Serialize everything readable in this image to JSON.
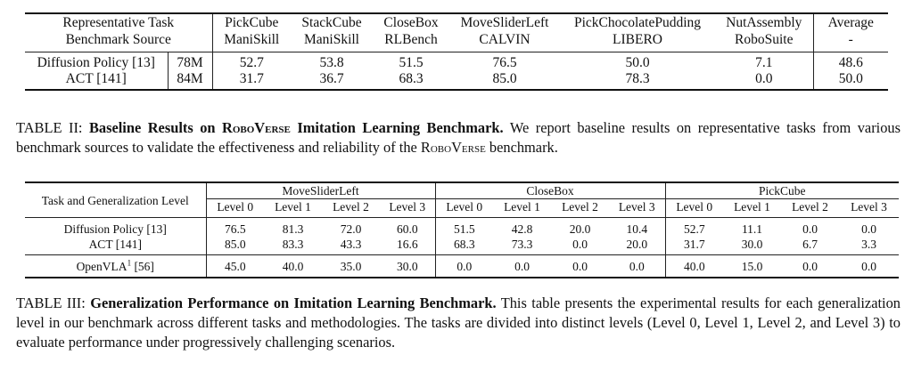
{
  "table2": {
    "header": {
      "label_line1": "Representative Task",
      "label_line2": "Benchmark Source",
      "columns": [
        {
          "task": "PickCube",
          "source": "ManiSkill"
        },
        {
          "task": "StackCube",
          "source": "ManiSkill"
        },
        {
          "task": "CloseBox",
          "source": "RLBench"
        },
        {
          "task": "MoveSliderLeft",
          "source": "CALVIN"
        },
        {
          "task": "PickChocolatePudding",
          "source": "LIBERO"
        },
        {
          "task": "NutAssembly",
          "source": "RoboSuite"
        }
      ],
      "average_label": "Average",
      "average_sub": "-"
    },
    "rows": [
      {
        "method": "Diffusion Policy [13]",
        "params": "78M",
        "values": [
          "52.7",
          "53.8",
          "51.5",
          "76.5",
          "50.0",
          "7.1"
        ],
        "average": "48.6"
      },
      {
        "method": "ACT [141]",
        "params": "84M",
        "values": [
          "31.7",
          "36.7",
          "68.3",
          "85.0",
          "78.3",
          "0.0"
        ],
        "average": "50.0"
      }
    ],
    "caption": {
      "label": "TABLE II:",
      "bold_a": "Baseline Results on ",
      "bold_sc": "RoboVerse",
      "bold_b": " Imitation Learning Benchmark.",
      "text_a": " We report baseline results on representative tasks from various benchmark sources to validate the effectiveness and reliability of the ",
      "text_sc": "RoboVerse",
      "text_b": " benchmark."
    }
  },
  "table3": {
    "header": {
      "label": "Task and Generalization Level",
      "groups": [
        "MoveSliderLeft",
        "CloseBox",
        "PickCube"
      ],
      "levels": [
        "Level 0",
        "Level 1",
        "Level 2",
        "Level 3"
      ]
    },
    "rows": [
      {
        "method": "Diffusion Policy [13]",
        "values": [
          "76.5",
          "81.3",
          "72.0",
          "60.0",
          "51.5",
          "42.8",
          "20.0",
          "10.4",
          "52.7",
          "11.1",
          "0.0",
          "0.0"
        ]
      },
      {
        "method": "ACT [141]",
        "values": [
          "85.0",
          "83.3",
          "43.3",
          "16.6",
          "68.3",
          "73.3",
          "0.0",
          "20.0",
          "31.7",
          "30.0",
          "6.7",
          "3.3"
        ]
      },
      {
        "method": "OpenVLA",
        "method_sup": "1",
        "method_ref": " [56]",
        "values": [
          "45.0",
          "40.0",
          "35.0",
          "30.0",
          "0.0",
          "0.0",
          "0.0",
          "0.0",
          "40.0",
          "15.0",
          "0.0",
          "0.0"
        ]
      }
    ],
    "caption": {
      "label": "TABLE III:",
      "bold": "Generalization Performance on Imitation Learning Benchmark.",
      "text": " This table presents the experimental results for each generalization level in our benchmark across different tasks and methodologies. The tasks are divided into distinct levels (Level 0, Level 1, Level 2, and Level 3) to evaluate performance under progressively challenging scenarios."
    }
  }
}
